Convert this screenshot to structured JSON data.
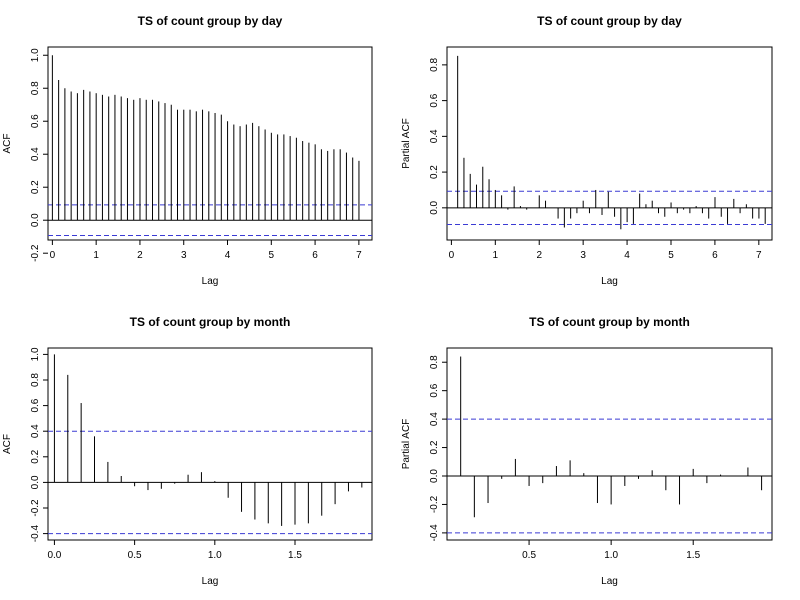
{
  "chart_data": [
    {
      "type": "bar",
      "kind": "acf",
      "title": "TS of count group by day",
      "xlabel": "Lag",
      "ylabel": "ACF",
      "xlim": [
        -0.1,
        7.3
      ],
      "ylim": [
        -0.12,
        1.05
      ],
      "xticks": [
        "0",
        "1",
        "2",
        "3",
        "4",
        "5",
        "6",
        "7"
      ],
      "yticks": [
        "-0.2",
        "0.0",
        "0.2",
        "0.4",
        "0.6",
        "0.8",
        "1.0"
      ],
      "conf_band": 0.093,
      "lag_step": 0.1429,
      "values": [
        1.0,
        0.85,
        0.8,
        0.78,
        0.77,
        0.79,
        0.78,
        0.77,
        0.76,
        0.75,
        0.76,
        0.75,
        0.74,
        0.73,
        0.74,
        0.73,
        0.73,
        0.72,
        0.71,
        0.7,
        0.67,
        0.67,
        0.67,
        0.66,
        0.67,
        0.66,
        0.65,
        0.64,
        0.6,
        0.58,
        0.57,
        0.58,
        0.59,
        0.57,
        0.55,
        0.53,
        0.52,
        0.52,
        0.51,
        0.5,
        0.48,
        0.47,
        0.46,
        0.43,
        0.42,
        0.43,
        0.43,
        0.41,
        0.38,
        0.36
      ]
    },
    {
      "type": "bar",
      "kind": "pacf",
      "title": "TS of count group by day",
      "xlabel": "Lag",
      "ylabel": "Partial ACF",
      "xlim": [
        -0.1,
        7.3
      ],
      "ylim": [
        -0.18,
        0.9
      ],
      "xticks": [
        "0",
        "1",
        "2",
        "3",
        "4",
        "5",
        "6",
        "7"
      ],
      "yticks": [
        "0.0",
        "0.2",
        "0.4",
        "0.6",
        "0.8"
      ],
      "conf_band": 0.093,
      "lag_step": 0.1429,
      "values": [
        0.85,
        0.28,
        0.19,
        0.13,
        0.23,
        0.16,
        0.1,
        0.07,
        -0.01,
        0.12,
        0.01,
        -0.01,
        0.0,
        0.07,
        0.04,
        0.0,
        -0.06,
        -0.11,
        -0.06,
        -0.03,
        0.04,
        -0.03,
        0.1,
        -0.04,
        0.09,
        -0.05,
        -0.12,
        -0.08,
        -0.09,
        0.08,
        0.02,
        0.04,
        -0.03,
        -0.05,
        0.03,
        -0.03,
        -0.01,
        -0.03,
        0.01,
        -0.03,
        -0.06,
        0.06,
        -0.05,
        -0.09,
        0.05,
        -0.03,
        0.02,
        -0.06,
        -0.06,
        -0.09
      ]
    },
    {
      "type": "bar",
      "kind": "acf",
      "title": "TS of count group by month",
      "xlabel": "Lag",
      "ylabel": "ACF",
      "xlim": [
        -0.04,
        1.98
      ],
      "ylim": [
        -0.45,
        1.05
      ],
      "xticks": [
        "0.0",
        "0.5",
        "1.0",
        "1.5"
      ],
      "yticks": [
        "-0.4",
        "-0.2",
        "0.0",
        "0.2",
        "0.4",
        "0.6",
        "0.8",
        "1.0"
      ],
      "conf_band": 0.4,
      "lag_step": 0.08333,
      "values": [
        1.0,
        0.84,
        0.62,
        0.36,
        0.16,
        0.05,
        -0.03,
        -0.06,
        -0.05,
        -0.01,
        0.06,
        0.08,
        0.01,
        -0.12,
        -0.23,
        -0.29,
        -0.32,
        -0.34,
        -0.33,
        -0.32,
        -0.26,
        -0.17,
        -0.07,
        -0.04
      ]
    },
    {
      "type": "bar",
      "kind": "pacf",
      "title": "TS of count group by month",
      "xlabel": "Lag",
      "ylabel": "Partial ACF",
      "xlim": [
        0.0,
        1.98
      ],
      "ylim": [
        -0.45,
        0.9
      ],
      "xticks": [
        "0.5",
        "1.0",
        "1.5"
      ],
      "yticks": [
        "-0.4",
        "-0.2",
        "0.0",
        "0.2",
        "0.4",
        "0.6",
        "0.8"
      ],
      "conf_band": 0.4,
      "lag_step": 0.08333,
      "values": [
        0.84,
        -0.29,
        -0.19,
        -0.02,
        0.12,
        -0.07,
        -0.05,
        0.07,
        0.11,
        0.02,
        -0.19,
        -0.2,
        -0.07,
        -0.02,
        0.04,
        -0.1,
        -0.2,
        0.05,
        -0.05,
        0.01,
        0.0,
        0.06,
        -0.1
      ]
    }
  ]
}
